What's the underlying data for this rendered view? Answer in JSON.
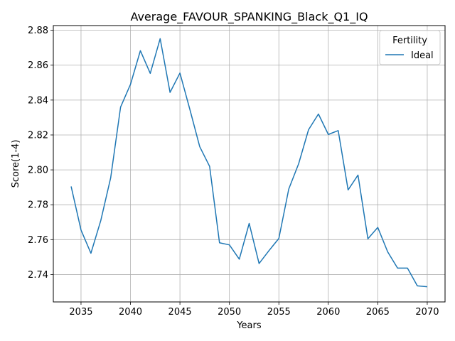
{
  "chart_data": {
    "type": "line",
    "title": "Average_FAVOUR_SPANKING_Black_Q1_IQ",
    "xlabel": "Years",
    "ylabel": "Score(1-4)",
    "xlim": [
      2032.2,
      2071.8
    ],
    "ylim": [
      2.7243,
      2.8827
    ],
    "xticks": [
      2035,
      2040,
      2045,
      2050,
      2055,
      2060,
      2065,
      2070
    ],
    "yticks": [
      2.74,
      2.76,
      2.78,
      2.8,
      2.82,
      2.84,
      2.86,
      2.88
    ],
    "ytick_labels": [
      "2.74",
      "2.76",
      "2.78",
      "2.80",
      "2.82",
      "2.84",
      "2.86",
      "2.88"
    ],
    "grid": true,
    "legend": {
      "title": "Fertility",
      "placement": "top-right"
    },
    "series": [
      {
        "name": "Ideal",
        "color": "#1f77b4",
        "x": [
          2034,
          2035,
          2036,
          2037,
          2038,
          2039,
          2040,
          2041,
          2042,
          2043,
          2044,
          2045,
          2046,
          2047,
          2048,
          2049,
          2050,
          2051,
          2052,
          2053,
          2054,
          2055,
          2056,
          2057,
          2058,
          2059,
          2060,
          2061,
          2062,
          2063,
          2064,
          2065,
          2066,
          2067,
          2068,
          2069,
          2070
        ],
        "y": [
          2.7905,
          2.7655,
          2.7522,
          2.771,
          2.7955,
          2.836,
          2.849,
          2.8683,
          2.8553,
          2.8752,
          2.8444,
          2.8555,
          2.8347,
          2.8133,
          2.802,
          2.7582,
          2.757,
          2.7488,
          2.7693,
          2.7463,
          2.7537,
          2.7607,
          2.789,
          2.8035,
          2.823,
          2.832,
          2.8203,
          2.8225,
          2.7885,
          2.797,
          2.7605,
          2.767,
          2.753,
          2.7437,
          2.7437,
          2.7335,
          2.733
        ]
      }
    ]
  }
}
